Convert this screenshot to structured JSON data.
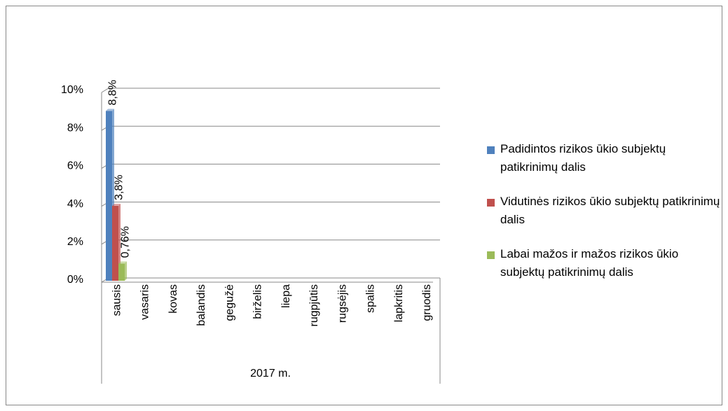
{
  "chart_data": {
    "type": "bar",
    "categories": [
      "sausis",
      "vasaris",
      "kovas",
      "balandis",
      "gegužė",
      "birželis",
      "liepa",
      "rugpjūtis",
      "rugsėjis",
      "spalis",
      "lapkritis",
      "gruodis"
    ],
    "group_label": "2017 m.",
    "series": [
      {
        "name": "Padidintos rizikos ūkio subjektų patikrinimų dalis",
        "color": "#4f81bd",
        "values": [
          8.8,
          null,
          null,
          null,
          null,
          null,
          null,
          null,
          null,
          null,
          null,
          null
        ],
        "value_labels": [
          "8,8%",
          null,
          null,
          null,
          null,
          null,
          null,
          null,
          null,
          null,
          null,
          null
        ]
      },
      {
        "name": "Vidutinės rizikos ūkio subjektų patikrinimų dalis",
        "color": "#c0504d",
        "values": [
          3.8,
          null,
          null,
          null,
          null,
          null,
          null,
          null,
          null,
          null,
          null,
          null
        ],
        "value_labels": [
          "3,8%",
          null,
          null,
          null,
          null,
          null,
          null,
          null,
          null,
          null,
          null,
          null
        ]
      },
      {
        "name": "Labai mažos ir mažos rizikos ūkio subjektų patikrinimų dalis",
        "color": "#9bbb59",
        "values": [
          0.76,
          null,
          null,
          null,
          null,
          null,
          null,
          null,
          null,
          null,
          null,
          null
        ],
        "value_labels": [
          "0,76%",
          null,
          null,
          null,
          null,
          null,
          null,
          null,
          null,
          null,
          null,
          null
        ]
      }
    ],
    "ylim": [
      0,
      10
    ],
    "yticks": [
      {
        "value": 0,
        "label": "0%"
      },
      {
        "value": 2,
        "label": "2%"
      },
      {
        "value": 4,
        "label": "4%"
      },
      {
        "value": 6,
        "label": "6%"
      },
      {
        "value": 8,
        "label": "8%"
      },
      {
        "value": 10,
        "label": "10%"
      }
    ],
    "grid": true,
    "legend": "right"
  }
}
